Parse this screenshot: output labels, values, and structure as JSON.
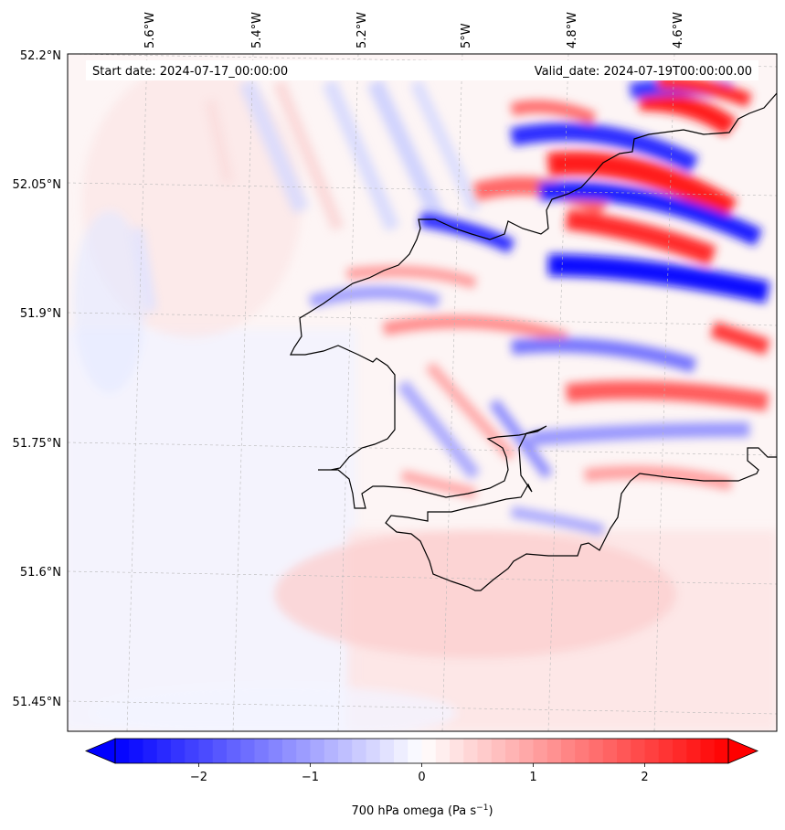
{
  "header": {
    "start_date": "Start date: 2024-07-17_00:00:00",
    "valid_date": "Valid_date: 2024-07-19T00:00:00.00"
  },
  "map": {
    "lon_ticks": [
      "5.6°W",
      "5.4°W",
      "5.2°W",
      "5°W",
      "4.8°W",
      "4.6°W"
    ],
    "lat_ticks": [
      "52.2°N",
      "52.05°N",
      "51.9°N",
      "51.75°N",
      "51.6°N",
      "51.45°N"
    ],
    "lon_range_deg": [
      -5.75,
      -4.5
    ],
    "lat_range_deg": [
      51.43,
      52.2
    ]
  },
  "colorbar": {
    "ticks": [
      "−2",
      "−1",
      "0",
      "1",
      "2"
    ],
    "label": "700 hPa omega (Pa s",
    "label_exp": "−1",
    "label_close": ")",
    "range": [
      -2.75,
      2.75
    ],
    "extend": "both",
    "colors": {
      "low": "#0000ff",
      "mid": "#ffffff",
      "high": "#ff0000"
    }
  }
}
